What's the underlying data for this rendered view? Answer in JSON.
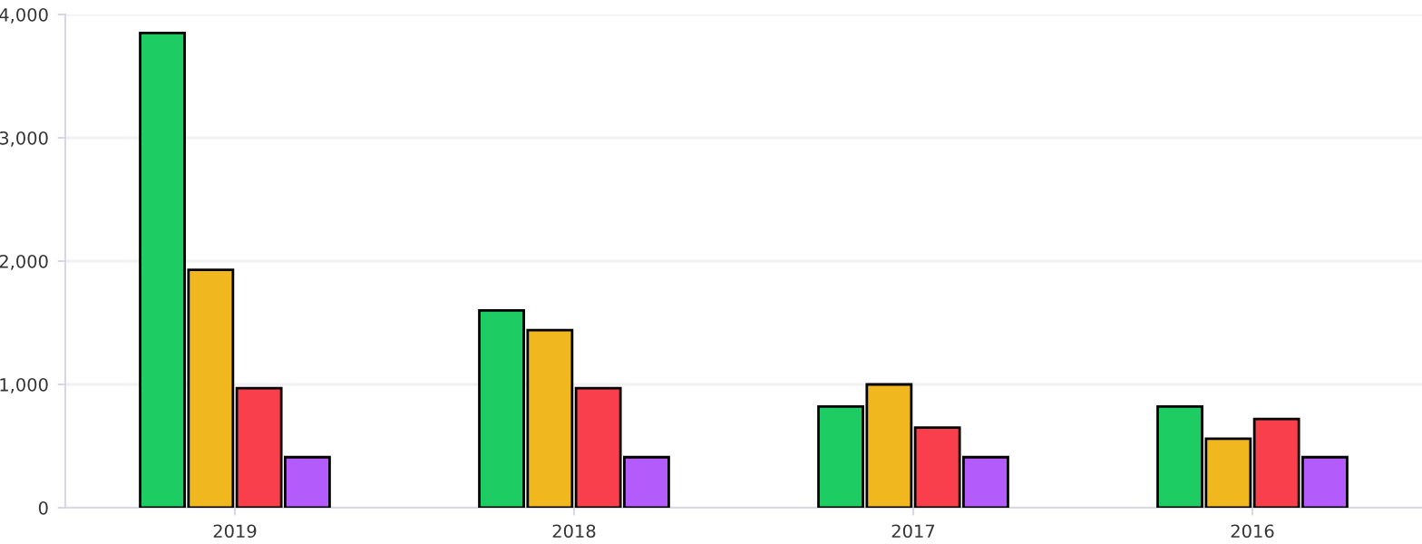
{
  "chart_data": {
    "type": "bar",
    "categories": [
      "2019",
      "2018",
      "2017",
      "2016"
    ],
    "series": [
      {
        "color": "#1dcc63",
        "values": [
          3850,
          1600,
          820,
          820
        ]
      },
      {
        "color": "#f0b71e",
        "values": [
          1930,
          1440,
          1000,
          560
        ]
      },
      {
        "color": "#fa3f4c",
        "values": [
          970,
          970,
          650,
          720
        ]
      },
      {
        "color": "#b45bfb",
        "values": [
          410,
          410,
          410,
          410
        ]
      }
    ],
    "ylim": [
      0,
      4000
    ],
    "yticks": [
      0,
      {
        "value": 1000,
        "label": "1,000"
      },
      {
        "value": 2000,
        "label": "2,000"
      },
      {
        "value": 3000,
        "label": "3,000"
      },
      {
        "value": 4000,
        "label": "4,000"
      }
    ],
    "grid": "y",
    "legend": false
  }
}
